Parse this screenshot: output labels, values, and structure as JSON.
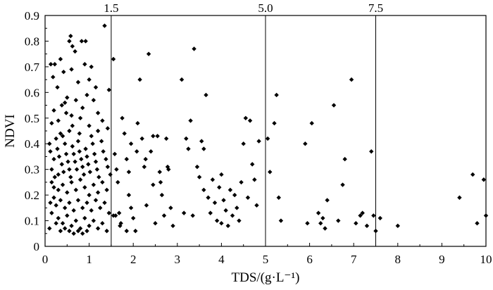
{
  "chart_data": {
    "type": "scatter",
    "title": "",
    "xlabel": "TDS/(g·L⁻¹)",
    "ylabel": "NDVI",
    "xlim": [
      0,
      10
    ],
    "ylim": [
      0,
      0.9
    ],
    "x_ticks": [
      "0",
      "1",
      "2",
      "3",
      "4",
      "5",
      "6",
      "7",
      "8",
      "9",
      "10"
    ],
    "y_ticks": [
      "0",
      "0.1",
      "0.2",
      "0.3",
      "0.4",
      "0.5",
      "0.6",
      "0.7",
      "0.8",
      "0.9"
    ],
    "grid": false,
    "marker": "diamond",
    "color": "#000000",
    "reference_lines": [
      {
        "x": 1.5,
        "label": "1.5"
      },
      {
        "x": 5.0,
        "label": "5.0"
      },
      {
        "x": 7.5,
        "label": "7.5"
      }
    ],
    "series": [
      {
        "points": [
          [
            0.13,
            0.71
          ],
          [
            0.22,
            0.71
          ],
          [
            0.35,
            0.73
          ],
          [
            0.55,
            0.8
          ],
          [
            0.58,
            0.82
          ],
          [
            0.62,
            0.78
          ],
          [
            0.68,
            0.76
          ],
          [
            0.83,
            0.8
          ],
          [
            0.92,
            0.8
          ],
          [
            1.35,
            0.86
          ],
          [
            0.18,
            0.66
          ],
          [
            0.28,
            0.62
          ],
          [
            0.42,
            0.68
          ],
          [
            0.6,
            0.69
          ],
          [
            0.9,
            0.71
          ],
          [
            1.0,
            0.65
          ],
          [
            1.15,
            0.62
          ],
          [
            0.75,
            0.64
          ],
          [
            1.55,
            0.73
          ],
          [
            1.05,
            0.7
          ],
          [
            0.2,
            0.53
          ],
          [
            0.3,
            0.49
          ],
          [
            0.15,
            0.48
          ],
          [
            0.45,
            0.56
          ],
          [
            0.5,
            0.58
          ],
          [
            0.38,
            0.55
          ],
          [
            0.48,
            0.52
          ],
          [
            0.7,
            0.57
          ],
          [
            0.85,
            0.54
          ],
          [
            0.95,
            0.59
          ],
          [
            1.1,
            0.57
          ],
          [
            1.2,
            0.52
          ],
          [
            1.3,
            0.49
          ],
          [
            1.42,
            0.46
          ],
          [
            0.62,
            0.47
          ],
          [
            0.78,
            0.44
          ],
          [
            0.55,
            0.45
          ],
          [
            0.35,
            0.44
          ],
          [
            0.25,
            0.42
          ],
          [
            1.45,
            0.61
          ],
          [
            0.12,
            0.37
          ],
          [
            0.2,
            0.34
          ],
          [
            0.15,
            0.3
          ],
          [
            0.22,
            0.27
          ],
          [
            0.28,
            0.38
          ],
          [
            0.32,
            0.35
          ],
          [
            0.38,
            0.32
          ],
          [
            0.42,
            0.29
          ],
          [
            0.45,
            0.4
          ],
          [
            0.48,
            0.36
          ],
          [
            0.52,
            0.33
          ],
          [
            0.55,
            0.3
          ],
          [
            0.58,
            0.27
          ],
          [
            0.62,
            0.39
          ],
          [
            0.65,
            0.36
          ],
          [
            0.68,
            0.33
          ],
          [
            0.72,
            0.3
          ],
          [
            0.75,
            0.41
          ],
          [
            0.78,
            0.37
          ],
          [
            0.82,
            0.34
          ],
          [
            0.85,
            0.31
          ],
          [
            0.88,
            0.28
          ],
          [
            0.92,
            0.38
          ],
          [
            0.95,
            0.35
          ],
          [
            0.98,
            0.32
          ],
          [
            1.02,
            0.29
          ],
          [
            1.05,
            0.43
          ],
          [
            1.08,
            0.4
          ],
          [
            1.12,
            0.36
          ],
          [
            1.15,
            0.33
          ],
          [
            1.18,
            0.3
          ],
          [
            1.22,
            0.27
          ],
          [
            1.28,
            0.41
          ],
          [
            1.32,
            0.37
          ],
          [
            1.38,
            0.34
          ],
          [
            1.42,
            0.31
          ],
          [
            1.48,
            0.28
          ],
          [
            0.4,
            0.24
          ],
          [
            0.5,
            0.21
          ],
          [
            0.6,
            0.25
          ],
          [
            0.7,
            0.22
          ],
          [
            0.8,
            0.26
          ],
          [
            0.9,
            0.23
          ],
          [
            1.0,
            0.2
          ],
          [
            1.1,
            0.24
          ],
          [
            1.2,
            0.21
          ],
          [
            1.3,
            0.25
          ],
          [
            1.4,
            0.22
          ],
          [
            0.3,
            0.22
          ],
          [
            0.2,
            0.19
          ],
          [
            0.25,
            0.16
          ],
          [
            0.35,
            0.18
          ],
          [
            0.45,
            0.15
          ],
          [
            0.55,
            0.17
          ],
          [
            0.65,
            0.14
          ],
          [
            0.75,
            0.18
          ],
          [
            0.85,
            0.15
          ],
          [
            0.95,
            0.17
          ],
          [
            1.05,
            0.14
          ],
          [
            1.15,
            0.18
          ],
          [
            1.25,
            0.15
          ],
          [
            1.35,
            0.17
          ],
          [
            1.45,
            0.13
          ],
          [
            0.15,
            0.13
          ],
          [
            0.3,
            0.11
          ],
          [
            0.4,
            0.09
          ],
          [
            0.5,
            0.12
          ],
          [
            0.6,
            0.08
          ],
          [
            0.7,
            0.1
          ],
          [
            0.8,
            0.07
          ],
          [
            0.9,
            0.11
          ],
          [
            1.0,
            0.08
          ],
          [
            1.1,
            0.1
          ],
          [
            1.2,
            0.07
          ],
          [
            1.3,
            0.09
          ],
          [
            1.4,
            0.06
          ],
          [
            0.1,
            0.07
          ],
          [
            0.55,
            0.06
          ],
          [
            0.65,
            0.05
          ],
          [
            0.75,
            0.06
          ],
          [
            0.85,
            0.05
          ],
          [
            0.95,
            0.06
          ],
          [
            0.35,
            0.06
          ],
          [
            0.45,
            0.07
          ],
          [
            0.25,
            0.09
          ],
          [
            0.2,
            0.23
          ],
          [
            0.3,
            0.28
          ],
          [
            0.4,
            0.43
          ],
          [
            0.6,
            0.51
          ],
          [
            0.8,
            0.5
          ],
          [
            1.0,
            0.47
          ],
          [
            1.2,
            0.45
          ],
          [
            0.15,
            0.25
          ],
          [
            0.1,
            0.4
          ],
          [
            0.12,
            0.17
          ],
          [
            1.58,
            0.36
          ],
          [
            1.62,
            0.3
          ],
          [
            1.65,
            0.25
          ],
          [
            1.68,
            0.13
          ],
          [
            1.72,
            0.09
          ],
          [
            1.75,
            0.5
          ],
          [
            1.8,
            0.44
          ],
          [
            1.85,
            0.34
          ],
          [
            1.9,
            0.29
          ],
          [
            1.95,
            0.15
          ],
          [
            2.0,
            0.11
          ],
          [
            2.05,
            0.06
          ],
          [
            2.1,
            0.48
          ],
          [
            2.15,
            0.65
          ],
          [
            2.2,
            0.42
          ],
          [
            2.25,
            0.31
          ],
          [
            2.3,
            0.16
          ],
          [
            2.35,
            0.75
          ],
          [
            2.4,
            0.37
          ],
          [
            2.45,
            0.24
          ],
          [
            2.5,
            0.09
          ],
          [
            2.55,
            0.43
          ],
          [
            2.6,
            0.29
          ],
          [
            2.65,
            0.2
          ],
          [
            2.7,
            0.12
          ],
          [
            2.75,
            0.42
          ],
          [
            2.8,
            0.3
          ],
          [
            2.85,
            0.15
          ],
          [
            2.9,
            0.08
          ],
          [
            1.6,
            0.12
          ],
          [
            1.7,
            0.08
          ],
          [
            1.85,
            0.06
          ],
          [
            1.95,
            0.4
          ],
          [
            2.08,
            0.37
          ],
          [
            2.28,
            0.34
          ],
          [
            2.45,
            0.43
          ],
          [
            2.62,
            0.25
          ],
          [
            2.78,
            0.31
          ],
          [
            1.55,
            0.12
          ],
          [
            1.9,
            0.2
          ],
          [
            3.1,
            0.65
          ],
          [
            3.2,
            0.42
          ],
          [
            3.25,
            0.38
          ],
          [
            3.3,
            0.49
          ],
          [
            3.38,
            0.77
          ],
          [
            3.45,
            0.31
          ],
          [
            3.5,
            0.27
          ],
          [
            3.55,
            0.41
          ],
          [
            3.6,
            0.22
          ],
          [
            3.65,
            0.59
          ],
          [
            3.7,
            0.19
          ],
          [
            3.75,
            0.13
          ],
          [
            3.8,
            0.26
          ],
          [
            3.85,
            0.17
          ],
          [
            3.9,
            0.1
          ],
          [
            3.95,
            0.23
          ],
          [
            4.0,
            0.28
          ],
          [
            4.05,
            0.18
          ],
          [
            4.1,
            0.14
          ],
          [
            4.15,
            0.08
          ],
          [
            4.2,
            0.22
          ],
          [
            4.25,
            0.12
          ],
          [
            4.3,
            0.2
          ],
          [
            4.35,
            0.15
          ],
          [
            4.4,
            0.1
          ],
          [
            4.45,
            0.25
          ],
          [
            4.5,
            0.4
          ],
          [
            4.55,
            0.5
          ],
          [
            4.6,
            0.19
          ],
          [
            4.65,
            0.49
          ],
          [
            4.7,
            0.32
          ],
          [
            4.75,
            0.26
          ],
          [
            4.8,
            0.16
          ],
          [
            4.85,
            0.41
          ],
          [
            3.15,
            0.13
          ],
          [
            3.35,
            0.12
          ],
          [
            3.6,
            0.38
          ],
          [
            4.0,
            0.09
          ],
          [
            5.05,
            0.42
          ],
          [
            5.1,
            0.29
          ],
          [
            5.2,
            0.48
          ],
          [
            5.25,
            0.59
          ],
          [
            5.3,
            0.19
          ],
          [
            5.35,
            0.1
          ],
          [
            5.9,
            0.4
          ],
          [
            5.95,
            0.09
          ],
          [
            6.05,
            0.48
          ],
          [
            6.2,
            0.13
          ],
          [
            6.25,
            0.09
          ],
          [
            6.3,
            0.11
          ],
          [
            6.35,
            0.07
          ],
          [
            6.4,
            0.18
          ],
          [
            6.55,
            0.55
          ],
          [
            6.65,
            0.1
          ],
          [
            6.75,
            0.24
          ],
          [
            6.8,
            0.34
          ],
          [
            6.95,
            0.65
          ],
          [
            7.05,
            0.09
          ],
          [
            7.15,
            0.12
          ],
          [
            7.3,
            0.08
          ],
          [
            7.4,
            0.37
          ],
          [
            7.45,
            0.12
          ],
          [
            7.5,
            0.06
          ],
          [
            7.2,
            0.13
          ],
          [
            7.6,
            0.11
          ],
          [
            8.0,
            0.08
          ],
          [
            9.4,
            0.19
          ],
          [
            9.7,
            0.28
          ],
          [
            9.8,
            0.09
          ],
          [
            9.95,
            0.26
          ],
          [
            10.0,
            0.12
          ]
        ]
      }
    ]
  }
}
